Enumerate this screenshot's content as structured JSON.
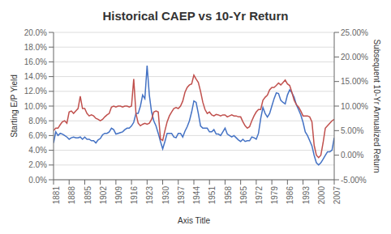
{
  "chart_data": {
    "type": "line",
    "title": "Historical CAEP vs 10-Yr Return",
    "xlabel": "Axis Title",
    "ylabel": "Starting E/P Yield",
    "y2label": "Subsequent 10-Yr Annualized Return",
    "x": [
      1881,
      1882,
      1883,
      1884,
      1885,
      1886,
      1887,
      1888,
      1889,
      1890,
      1891,
      1892,
      1893,
      1894,
      1895,
      1896,
      1897,
      1898,
      1899,
      1900,
      1901,
      1902,
      1903,
      1904,
      1905,
      1906,
      1907,
      1908,
      1909,
      1910,
      1911,
      1912,
      1913,
      1914,
      1915,
      1916,
      1917,
      1918,
      1919,
      1920,
      1921,
      1922,
      1923,
      1924,
      1925,
      1926,
      1927,
      1928,
      1929,
      1930,
      1931,
      1932,
      1933,
      1934,
      1935,
      1936,
      1937,
      1938,
      1939,
      1940,
      1941,
      1942,
      1943,
      1944,
      1945,
      1946,
      1947,
      1948,
      1949,
      1950,
      1951,
      1952,
      1953,
      1954,
      1955,
      1956,
      1957,
      1958,
      1959,
      1960,
      1961,
      1962,
      1963,
      1964,
      1965,
      1966,
      1967,
      1968,
      1969,
      1970,
      1971,
      1972,
      1973,
      1974,
      1975,
      1976,
      1977,
      1978,
      1979,
      1980,
      1981,
      1982,
      1983,
      1984,
      1985,
      1986,
      1987,
      1988,
      1989,
      1990,
      1991,
      1992,
      1993,
      1994,
      1995,
      1996,
      1997,
      1998,
      1999,
      2000,
      2001,
      2002,
      2003,
      2004,
      2005,
      2006,
      2007
    ],
    "series": [
      {
        "color": "#4472C4",
        "values": [
          0.05,
          0.065,
          0.06,
          0.063,
          0.062,
          0.06,
          0.058,
          0.055,
          0.057,
          0.058,
          0.057,
          0.057,
          0.058,
          0.055,
          0.058,
          0.055,
          0.055,
          0.053,
          0.053,
          0.05,
          0.054,
          0.056,
          0.061,
          0.063,
          0.063,
          0.065,
          0.07,
          0.068,
          0.062,
          0.063,
          0.064,
          0.065,
          0.068,
          0.07,
          0.07,
          0.073,
          0.078,
          0.09,
          0.09,
          0.1,
          0.115,
          0.11,
          0.155,
          0.115,
          0.092,
          0.08,
          0.073,
          0.063,
          0.052,
          0.042,
          0.052,
          0.063,
          0.063,
          0.063,
          0.058,
          0.057,
          0.063,
          0.063,
          0.058,
          0.066,
          0.072,
          0.08,
          0.092,
          0.107,
          0.105,
          0.09,
          0.073,
          0.07,
          0.07,
          0.07,
          0.065,
          0.065,
          0.068,
          0.062,
          0.062,
          0.06,
          0.065,
          0.07,
          0.062,
          0.06,
          0.058,
          0.06,
          0.057,
          0.054,
          0.052,
          0.055,
          0.052,
          0.053,
          0.053,
          0.058,
          0.057,
          0.055,
          0.063,
          0.083,
          0.098,
          0.09,
          0.085,
          0.09,
          0.1,
          0.11,
          0.118,
          0.117,
          0.108,
          0.105,
          0.103,
          0.115,
          0.122,
          0.118,
          0.112,
          0.102,
          0.095,
          0.088,
          0.078,
          0.065,
          0.06,
          0.053,
          0.046,
          0.033,
          0.023,
          0.02,
          0.023,
          0.028,
          0.033,
          0.038,
          0.038,
          0.04,
          0.057
        ]
      },
      {
        "color": "#C0504D",
        "axis": "y2",
        "values": [
          0.05,
          0.055,
          0.055,
          0.062,
          0.068,
          0.07,
          0.065,
          0.088,
          0.09,
          0.085,
          0.09,
          0.095,
          0.12,
          0.095,
          0.095,
          0.085,
          0.08,
          0.082,
          0.08,
          0.075,
          0.073,
          0.07,
          0.073,
          0.078,
          0.082,
          0.085,
          0.098,
          0.1,
          0.098,
          0.1,
          0.1,
          0.098,
          0.1,
          0.1,
          0.098,
          0.1,
          0.155,
          0.085,
          0.065,
          0.06,
          0.063,
          0.065,
          0.063,
          0.065,
          0.073,
          0.088,
          0.09,
          0.088,
          0.033,
          0.03,
          0.05,
          0.068,
          0.08,
          0.088,
          0.095,
          0.097,
          0.095,
          0.1,
          0.11,
          0.128,
          0.138,
          0.143,
          0.145,
          0.163,
          0.155,
          0.148,
          0.13,
          0.108,
          0.093,
          0.085,
          0.088,
          0.082,
          0.08,
          0.083,
          0.082,
          0.08,
          0.082,
          0.082,
          0.078,
          0.08,
          0.082,
          0.08,
          0.08,
          0.078,
          0.078,
          0.068,
          0.06,
          0.055,
          0.058,
          0.07,
          0.08,
          0.088,
          0.093,
          0.093,
          0.112,
          0.118,
          0.122,
          0.133,
          0.138,
          0.138,
          0.142,
          0.147,
          0.143,
          0.148,
          0.153,
          0.145,
          0.142,
          0.128,
          0.112,
          0.103,
          0.098,
          0.09,
          0.08,
          0.08,
          0.08,
          0.078,
          0.068,
          0.02,
          0.0,
          -0.005,
          0.0,
          0.025,
          0.055,
          0.06,
          0.065,
          0.07,
          0.073
        ]
      }
    ],
    "xlim": [
      1881,
      2007
    ],
    "xticks": [
      1881,
      1888,
      1895,
      1902,
      1909,
      1916,
      1923,
      1930,
      1937,
      1944,
      1951,
      1958,
      1965,
      1972,
      1979,
      1986,
      1993,
      2000,
      2007
    ],
    "ylim": [
      0.0,
      0.2
    ],
    "yticks": [
      {
        "value": 0.0,
        "label": "0.0%"
      },
      {
        "value": 0.02,
        "label": "2.0%"
      },
      {
        "value": 0.04,
        "label": "4.0%"
      },
      {
        "value": 0.06,
        "label": "6.0%"
      },
      {
        "value": 0.08,
        "label": "8.0%"
      },
      {
        "value": 0.1,
        "label": "10.0%"
      },
      {
        "value": 0.12,
        "label": "12.0%"
      },
      {
        "value": 0.14,
        "label": "14.0%"
      },
      {
        "value": 0.16,
        "label": "16.0%"
      },
      {
        "value": 0.18,
        "label": "18.0%"
      },
      {
        "value": 0.2,
        "label": "20.0%"
      }
    ],
    "y2lim": [
      -0.05,
      0.25
    ],
    "y2ticks": [
      {
        "value": -0.05,
        "label": "-5.00%"
      },
      {
        "value": 0.0,
        "label": "0.00%"
      },
      {
        "value": 0.05,
        "label": "5.00%"
      },
      {
        "value": 0.1,
        "label": "10.00%"
      },
      {
        "value": 0.15,
        "label": "15.00%"
      },
      {
        "value": 0.2,
        "label": "20.00%"
      },
      {
        "value": 0.25,
        "label": "25.00%"
      }
    ],
    "grid": true
  }
}
